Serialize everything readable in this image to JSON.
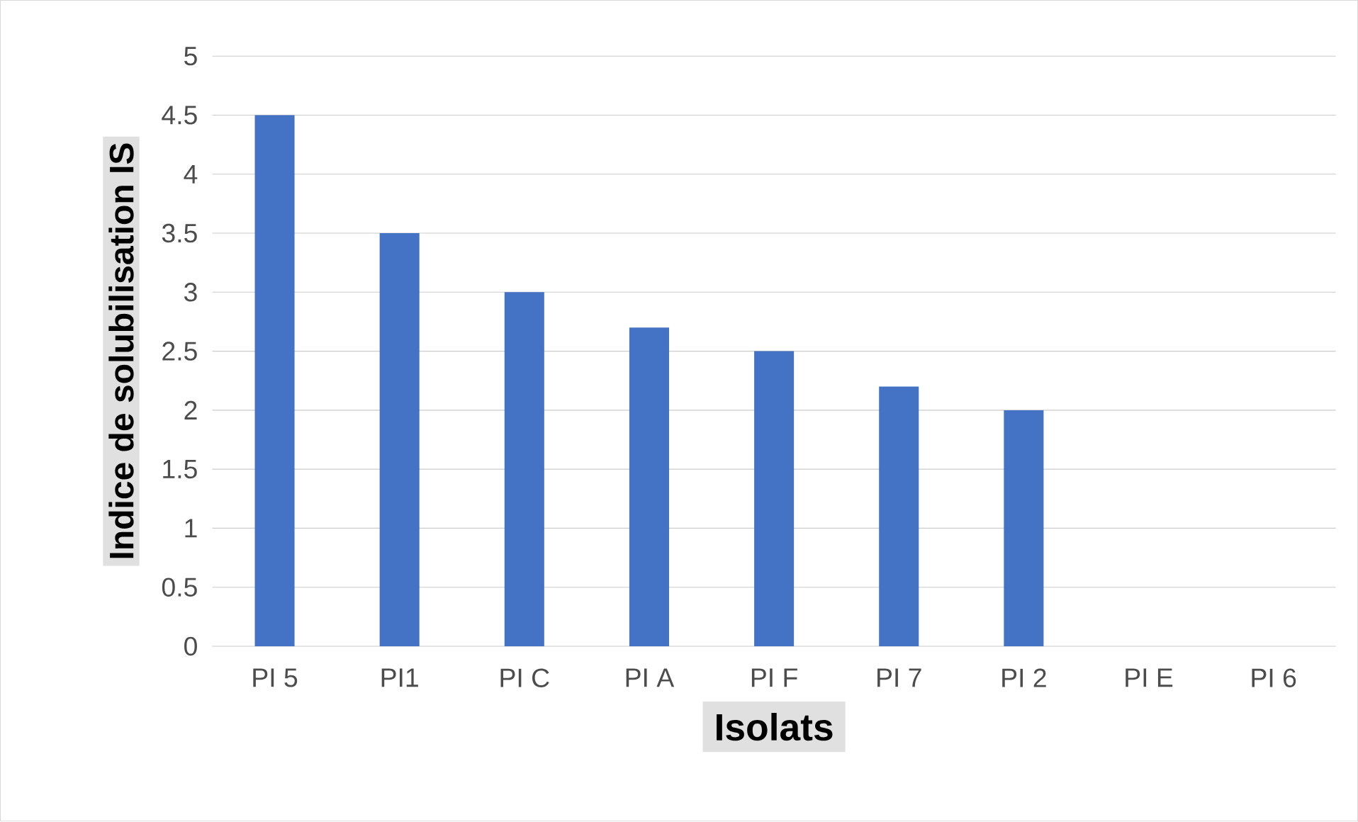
{
  "chart_data": {
    "type": "bar",
    "xlabel": "Isolats",
    "ylabel": "Indice de solubilisation IS",
    "categories": [
      "PI 5",
      "PI1",
      "PI C",
      "PI A",
      "PI F",
      "PI 7",
      "PI 2",
      "PI E",
      "PI 6"
    ],
    "values": [
      4.5,
      3.5,
      3,
      2.7,
      2.5,
      2.2,
      2,
      0,
      0
    ],
    "color": "#4472c4",
    "ylim": [
      0,
      5
    ],
    "yticks": [
      0,
      0.5,
      1,
      1.5,
      2,
      2.5,
      3,
      3.5,
      4,
      4.5,
      5
    ],
    "grid": "y"
  }
}
